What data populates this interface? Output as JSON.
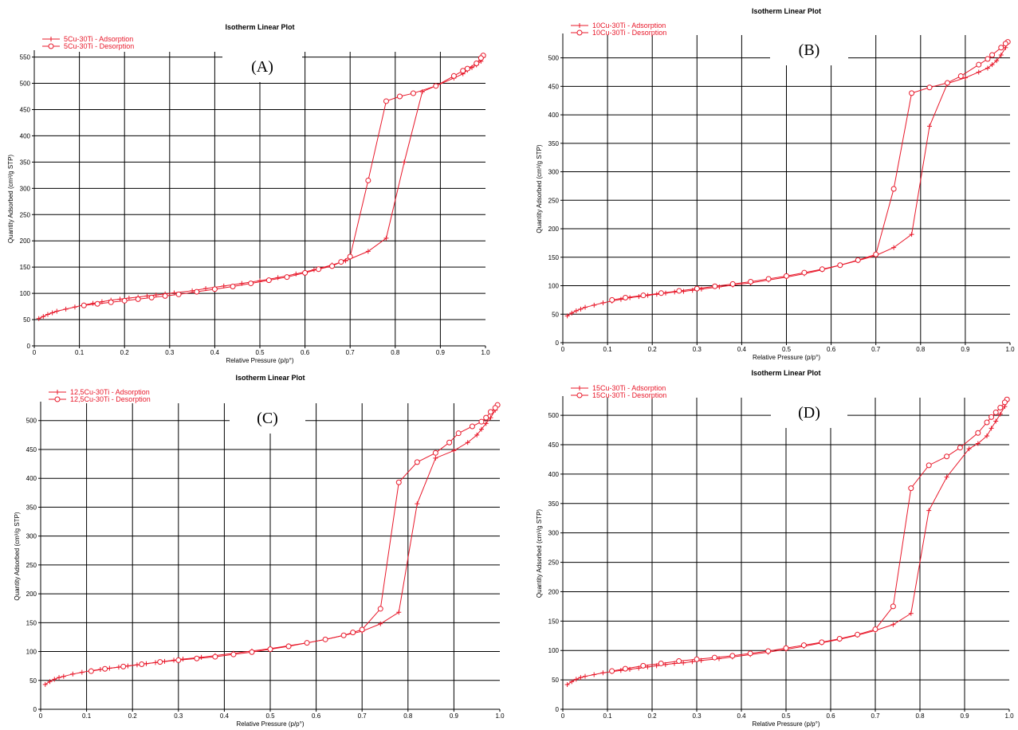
{
  "figure": {
    "colors": {
      "series": "#e8182a",
      "grid": "#000000",
      "axis": "#000000",
      "background": "#ffffff"
    }
  },
  "chart_data": [
    {
      "type": "line",
      "panel_label": "(A)",
      "title": "Isotherm Linear Plot",
      "xlabel": "Relative Pressure (p/p°)",
      "ylabel": "Quantity Adsorbed (cm³/g STP)",
      "xlim": [
        0,
        1.0
      ],
      "ylim": [
        0,
        560
      ],
      "xticks": [
        "0",
        "0.1",
        "0.2",
        "0.3",
        "0.4",
        "0.5",
        "0.6",
        "0.7",
        "0.8",
        "0.9",
        "1.0"
      ],
      "yticks": [
        "0",
        "50",
        "100",
        "150",
        "200",
        "250",
        "300",
        "350",
        "400",
        "450",
        "500",
        "550"
      ],
      "grid": true,
      "legend_position": "top-left",
      "series": [
        {
          "name": "5Cu-30Ti - Adsorption",
          "marker": "plus",
          "x": [
            0.01,
            0.02,
            0.03,
            0.04,
            0.05,
            0.07,
            0.09,
            0.11,
            0.13,
            0.15,
            0.17,
            0.19,
            0.21,
            0.23,
            0.25,
            0.27,
            0.29,
            0.31,
            0.35,
            0.38,
            0.42,
            0.46,
            0.5,
            0.54,
            0.58,
            0.62,
            0.66,
            0.69,
            0.74,
            0.78,
            0.82,
            0.86,
            0.89,
            0.93,
            0.95,
            0.96,
            0.97,
            0.98,
            0.99,
            0.995
          ],
          "y": [
            52,
            56,
            60,
            63,
            66,
            70,
            74,
            78,
            81,
            84,
            87,
            89,
            91,
            93,
            95,
            97,
            99,
            101,
            105,
            109,
            114,
            119,
            124,
            130,
            137,
            145,
            154,
            162,
            180,
            205,
            350,
            484,
            495,
            510,
            518,
            525,
            530,
            535,
            542,
            550
          ]
        },
        {
          "name": "5Cu-30Ti - Desorption",
          "marker": "circle",
          "x": [
            0.995,
            0.99,
            0.98,
            0.96,
            0.95,
            0.93,
            0.89,
            0.84,
            0.81,
            0.78,
            0.74,
            0.7,
            0.68,
            0.66,
            0.63,
            0.6,
            0.56,
            0.52,
            0.48,
            0.44,
            0.4,
            0.36,
            0.32,
            0.29,
            0.26,
            0.23,
            0.2,
            0.17,
            0.14,
            0.11
          ],
          "y": [
            553,
            548,
            538,
            528,
            524,
            514,
            495,
            481,
            475,
            466,
            315,
            170,
            160,
            152,
            146,
            139,
            131,
            125,
            119,
            113,
            108,
            103,
            98,
            95,
            92,
            89,
            86,
            83,
            80,
            77
          ]
        }
      ]
    },
    {
      "type": "line",
      "panel_label": "(B)",
      "title": "Isotherm Linear Plot",
      "xlabel": "Relative Pressure (p/p°)",
      "ylabel": "Quantity Adsorbed (cm³/g STP)",
      "xlim": [
        0,
        1.0
      ],
      "ylim": [
        0,
        540
      ],
      "xticks": [
        "0",
        "0.1",
        "0.2",
        "0.3",
        "0.4",
        "0.5",
        "0.6",
        "0.7",
        "0.8",
        "0.9",
        "1.0"
      ],
      "yticks": [
        "0",
        "50",
        "100",
        "150",
        "200",
        "250",
        "300",
        "350",
        "400",
        "450",
        "500"
      ],
      "grid": true,
      "legend_position": "top-left",
      "series": [
        {
          "name": "10Cu-30Ti - Adsorption",
          "marker": "plus",
          "x": [
            0.01,
            0.02,
            0.03,
            0.04,
            0.05,
            0.07,
            0.09,
            0.11,
            0.13,
            0.15,
            0.17,
            0.19,
            0.21,
            0.23,
            0.25,
            0.27,
            0.29,
            0.31,
            0.35,
            0.38,
            0.42,
            0.46,
            0.5,
            0.54,
            0.58,
            0.62,
            0.66,
            0.7,
            0.74,
            0.78,
            0.82,
            0.86,
            0.9,
            0.93,
            0.95,
            0.96,
            0.97,
            0.98,
            0.99,
            0.995
          ],
          "y": [
            47,
            52,
            56,
            59,
            62,
            66,
            70,
            73,
            76,
            79,
            81,
            83,
            85,
            87,
            89,
            90,
            92,
            94,
            98,
            101,
            105,
            110,
            115,
            121,
            128,
            136,
            144,
            153,
            167,
            190,
            380,
            455,
            465,
            475,
            482,
            488,
            495,
            505,
            518,
            528
          ]
        },
        {
          "name": "10Cu-30Ti - Desorption",
          "marker": "circle",
          "x": [
            0.995,
            0.99,
            0.98,
            0.96,
            0.95,
            0.93,
            0.89,
            0.86,
            0.82,
            0.78,
            0.74,
            0.7,
            0.66,
            0.62,
            0.58,
            0.54,
            0.5,
            0.46,
            0.42,
            0.38,
            0.34,
            0.3,
            0.26,
            0.22,
            0.18,
            0.14,
            0.11
          ],
          "y": [
            528,
            525,
            518,
            505,
            498,
            488,
            468,
            456,
            448,
            438,
            270,
            155,
            145,
            136,
            129,
            123,
            117,
            112,
            107,
            103,
            99,
            95,
            91,
            87,
            83,
            79,
            75
          ]
        }
      ]
    },
    {
      "type": "line",
      "panel_label": "(C)",
      "title": "Isotherm Linear Plot",
      "xlabel": "Relative Pressure (p/p°)",
      "ylabel": "Quantity Adsorbed (cm³/g STP)",
      "xlim": [
        0,
        1.0
      ],
      "ylim": [
        0,
        530
      ],
      "xticks": [
        "0",
        "0.1",
        "0.2",
        "0.3",
        "0.4",
        "0.5",
        "0.6",
        "0.7",
        "0.8",
        "0.9",
        "1.0"
      ],
      "yticks": [
        "0",
        "50",
        "100",
        "150",
        "200",
        "250",
        "300",
        "350",
        "400",
        "450",
        "500"
      ],
      "grid": true,
      "legend_position": "top-left",
      "series": [
        {
          "name": "12,5Cu-30Ti - Adsorption",
          "marker": "plus",
          "x": [
            0.01,
            0.02,
            0.03,
            0.04,
            0.05,
            0.07,
            0.09,
            0.11,
            0.13,
            0.15,
            0.17,
            0.19,
            0.21,
            0.23,
            0.25,
            0.27,
            0.29,
            0.31,
            0.35,
            0.38,
            0.42,
            0.46,
            0.5,
            0.54,
            0.58,
            0.62,
            0.66,
            0.7,
            0.74,
            0.78,
            0.82,
            0.86,
            0.9,
            0.93,
            0.95,
            0.96,
            0.97,
            0.98,
            0.99,
            0.995
          ],
          "y": [
            43,
            48,
            52,
            55,
            57,
            61,
            64,
            67,
            69,
            71,
            73,
            75,
            77,
            79,
            81,
            83,
            85,
            87,
            90,
            93,
            97,
            101,
            105,
            110,
            115,
            121,
            128,
            135,
            148,
            168,
            356,
            435,
            448,
            462,
            475,
            485,
            495,
            505,
            518,
            527
          ]
        },
        {
          "name": "12,5Cu-30Ti - Desorption",
          "marker": "circle",
          "x": [
            0.995,
            0.99,
            0.98,
            0.97,
            0.96,
            0.94,
            0.91,
            0.89,
            0.86,
            0.82,
            0.78,
            0.74,
            0.7,
            0.68,
            0.66,
            0.62,
            0.58,
            0.54,
            0.5,
            0.46,
            0.42,
            0.38,
            0.34,
            0.3,
            0.26,
            0.22,
            0.18,
            0.14,
            0.11
          ],
          "y": [
            527,
            522,
            515,
            505,
            498,
            490,
            478,
            462,
            444,
            428,
            393,
            174,
            138,
            133,
            128,
            121,
            115,
            109,
            104,
            99,
            95,
            91,
            88,
            85,
            82,
            78,
            74,
            70,
            66
          ]
        }
      ]
    },
    {
      "type": "line",
      "panel_label": "(D)",
      "title": "Isotherm Linear Plot",
      "xlabel": "Relative Pressure (p/p°)",
      "ylabel": "Quantity Adsorbed (cm³/g STP)",
      "xlim": [
        0,
        1.0
      ],
      "ylim": [
        0,
        530
      ],
      "xticks": [
        "0",
        "0.1",
        "0.2",
        "0.3",
        "0.4",
        "0.5",
        "0.6",
        "0.7",
        "0.8",
        "0.9",
        "1.0"
      ],
      "yticks": [
        "0",
        "50",
        "100",
        "150",
        "200",
        "250",
        "300",
        "350",
        "400",
        "450",
        "500"
      ],
      "grid": true,
      "legend_position": "top-left",
      "series": [
        {
          "name": "15Cu-30Ti - Adsorption",
          "marker": "plus",
          "x": [
            0.01,
            0.02,
            0.03,
            0.04,
            0.05,
            0.07,
            0.09,
            0.11,
            0.13,
            0.15,
            0.17,
            0.19,
            0.21,
            0.23,
            0.25,
            0.27,
            0.29,
            0.31,
            0.35,
            0.38,
            0.42,
            0.46,
            0.5,
            0.54,
            0.58,
            0.62,
            0.66,
            0.7,
            0.74,
            0.78,
            0.82,
            0.86,
            0.91,
            0.93,
            0.95,
            0.96,
            0.97,
            0.98,
            0.99,
            0.995
          ],
          "y": [
            42,
            47,
            51,
            54,
            56,
            59,
            62,
            64,
            66,
            68,
            70,
            72,
            74,
            76,
            78,
            79,
            81,
            83,
            86,
            89,
            93,
            97,
            102,
            107,
            113,
            119,
            126,
            134,
            144,
            163,
            338,
            395,
            443,
            452,
            465,
            478,
            490,
            502,
            515,
            525
          ]
        },
        {
          "name": "15Cu-30Ti - Desorption",
          "marker": "circle",
          "x": [
            0.995,
            0.99,
            0.98,
            0.97,
            0.96,
            0.95,
            0.93,
            0.89,
            0.86,
            0.82,
            0.78,
            0.74,
            0.7,
            0.66,
            0.62,
            0.58,
            0.54,
            0.5,
            0.46,
            0.42,
            0.38,
            0.34,
            0.3,
            0.26,
            0.22,
            0.18,
            0.14,
            0.11
          ],
          "y": [
            527,
            522,
            513,
            505,
            497,
            488,
            470,
            445,
            430,
            415,
            376,
            175,
            136,
            127,
            120,
            114,
            109,
            104,
            99,
            95,
            91,
            88,
            85,
            82,
            78,
            74,
            69,
            65
          ]
        }
      ]
    }
  ]
}
